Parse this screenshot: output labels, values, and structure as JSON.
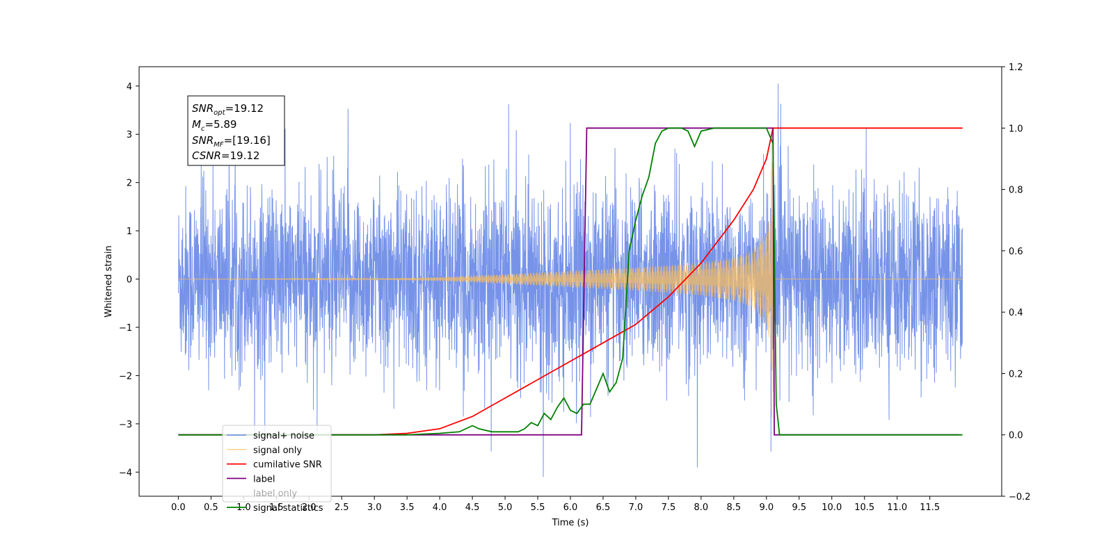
{
  "chart_data": {
    "type": "line",
    "xlabel": "Time (s)",
    "ylabel": "Whitened strain",
    "xlim": [
      -0.6,
      12.6
    ],
    "ylim": [
      -4.5,
      4.4
    ],
    "y2lim": [
      -0.2,
      1.2
    ],
    "x_ticks": [
      0.0,
      0.5,
      1.0,
      1.5,
      2.0,
      2.5,
      3.0,
      3.5,
      4.0,
      4.5,
      5.0,
      5.5,
      6.0,
      6.5,
      7.0,
      7.5,
      8.0,
      8.5,
      9.0,
      9.5,
      10.0,
      10.5,
      11.0,
      11.5
    ],
    "x_tick_labels": [
      "0.0",
      "0.5",
      "1.0",
      "1.5",
      "2.0",
      "2.5",
      "3.0",
      "3.5",
      "4.0",
      "4.5",
      "5.0",
      "5.5",
      "6.0",
      "6.5",
      "7.0",
      "7.5",
      "8.0",
      "8.5",
      "9.0",
      "9.5",
      "10.0",
      "10.5",
      "11.0",
      "11.5"
    ],
    "y_ticks": [
      -4,
      -3,
      -2,
      -1,
      0,
      1,
      2,
      3,
      4
    ],
    "y_tick_labels": [
      "−4",
      "−3",
      "−2",
      "−1",
      "0",
      "1",
      "2",
      "3",
      "4"
    ],
    "y2_ticks": [
      -0.2,
      0.0,
      0.2,
      0.4,
      0.6,
      0.8,
      1.0,
      1.2
    ],
    "y2_tick_labels": [
      "−0.2",
      "0.0",
      "0.2",
      "0.4",
      "0.6",
      "0.8",
      "1.0",
      "1.2"
    ],
    "grid": false,
    "legend_placement": "lower-left",
    "stats_box": {
      "snr_opt_main": "SNR",
      "snr_opt_sub": "opt",
      "snr_opt_value": "=19.12",
      "mc_main": "M",
      "mc_sub": "c",
      "mc_value": "=5.89",
      "snr_mf_main": "SNR",
      "snr_mf_sub": "MF",
      "snr_mf_value": "=[19.16]",
      "csnr_main": "CSNR",
      "csnr_value": "=19.12"
    },
    "series": [
      {
        "name": "signal+ noise",
        "color": "#6a8ae6",
        "axis": "left",
        "style": "noise",
        "x_range": [
          0.0,
          12.0
        ],
        "noise_envelope": 2.1,
        "max_peak": 4.05,
        "min_peak": -4.1
      },
      {
        "name": "signal only",
        "color": "#ffbf59",
        "axis": "left",
        "style": "chirp",
        "x_range": [
          0.0,
          12.0
        ],
        "amplitude_points": [
          [
            0.0,
            0.0
          ],
          [
            3.0,
            0.01
          ],
          [
            4.0,
            0.04
          ],
          [
            5.0,
            0.1
          ],
          [
            6.0,
            0.17
          ],
          [
            7.0,
            0.24
          ],
          [
            8.0,
            0.34
          ],
          [
            8.5,
            0.45
          ],
          [
            8.8,
            0.6
          ],
          [
            9.0,
            0.95
          ],
          [
            9.05,
            1.3
          ],
          [
            9.08,
            3.1
          ],
          [
            9.12,
            0.0
          ],
          [
            12.0,
            0.0
          ]
        ]
      },
      {
        "name": "cumilative SNR",
        "color": "#ff0000",
        "axis": "right",
        "x": [
          0.0,
          3.0,
          3.5,
          4.0,
          4.5,
          5.0,
          5.5,
          6.0,
          6.5,
          7.0,
          7.5,
          8.0,
          8.5,
          8.8,
          9.0,
          9.1,
          12.0
        ],
        "values": [
          0.0,
          0.0,
          0.005,
          0.02,
          0.06,
          0.12,
          0.18,
          0.24,
          0.3,
          0.36,
          0.45,
          0.56,
          0.7,
          0.8,
          0.9,
          1.0,
          1.0
        ]
      },
      {
        "name": "label",
        "color": "#7f007f",
        "axis": "right",
        "x": [
          0.0,
          6.17,
          6.25,
          9.1,
          9.12,
          11.95
        ],
        "values": [
          0.0,
          0.0,
          1.0,
          1.0,
          0.0,
          0.0
        ]
      },
      {
        "name": "label only",
        "color": "#000000",
        "axis": "right",
        "x": [],
        "values": []
      },
      {
        "name": "signal statistics",
        "color": "#008000",
        "axis": "right",
        "x": [
          0.0,
          3.0,
          3.5,
          4.0,
          4.3,
          4.5,
          4.6,
          4.8,
          5.0,
          5.2,
          5.3,
          5.4,
          5.5,
          5.6,
          5.7,
          5.8,
          5.9,
          6.0,
          6.1,
          6.2,
          6.3,
          6.4,
          6.5,
          6.6,
          6.7,
          6.8,
          6.9,
          7.0,
          7.1,
          7.2,
          7.3,
          7.4,
          7.5,
          7.6,
          7.7,
          7.8,
          7.9,
          8.0,
          8.2,
          8.5,
          9.0,
          9.1,
          9.15,
          9.2,
          12.0
        ],
        "values": [
          0.0,
          0.0,
          0.0,
          0.005,
          0.01,
          0.03,
          0.02,
          0.01,
          0.01,
          0.01,
          0.02,
          0.04,
          0.03,
          0.07,
          0.05,
          0.09,
          0.12,
          0.08,
          0.07,
          0.1,
          0.1,
          0.15,
          0.2,
          0.14,
          0.17,
          0.25,
          0.6,
          0.7,
          0.78,
          0.84,
          0.95,
          0.99,
          1.0,
          1.0,
          1.0,
          0.99,
          0.94,
          0.99,
          1.0,
          1.0,
          1.0,
          0.95,
          0.1,
          0.0,
          0.0
        ]
      }
    ]
  }
}
